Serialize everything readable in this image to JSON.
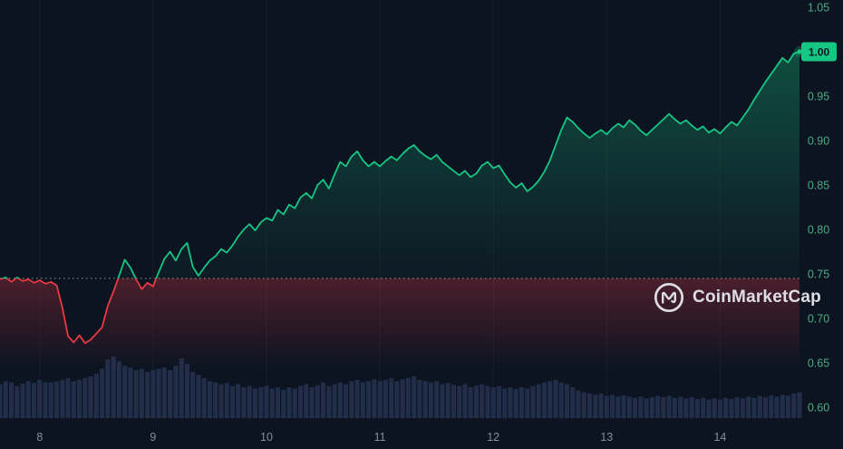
{
  "watermark": {
    "label": "CoinMarketCap"
  },
  "chart_data": {
    "type": "line",
    "title": "",
    "x_ticks": [
      "8",
      "9",
      "10",
      "11",
      "12",
      "13",
      "14"
    ],
    "y_ticks": [
      "1.05",
      "1.00",
      "0.95",
      "0.90",
      "0.85",
      "0.80",
      "0.75",
      "0.70",
      "0.65",
      "0.60"
    ],
    "x_range": [
      7.65,
      14.7
    ],
    "ylim": [
      0.6,
      1.05
    ],
    "open_price": 0.745,
    "current_price_label": "1.00",
    "prices": [
      0.744,
      0.746,
      0.741,
      0.746,
      0.742,
      0.744,
      0.74,
      0.743,
      0.739,
      0.741,
      0.737,
      0.712,
      0.68,
      0.673,
      0.681,
      0.672,
      0.676,
      0.683,
      0.69,
      0.714,
      0.73,
      0.748,
      0.766,
      0.757,
      0.744,
      0.733,
      0.74,
      0.736,
      0.752,
      0.767,
      0.775,
      0.765,
      0.778,
      0.785,
      0.758,
      0.748,
      0.757,
      0.765,
      0.77,
      0.778,
      0.774,
      0.782,
      0.792,
      0.8,
      0.806,
      0.799,
      0.808,
      0.813,
      0.81,
      0.822,
      0.817,
      0.828,
      0.824,
      0.836,
      0.841,
      0.835,
      0.85,
      0.856,
      0.846,
      0.862,
      0.876,
      0.871,
      0.882,
      0.888,
      0.878,
      0.871,
      0.876,
      0.871,
      0.877,
      0.882,
      0.878,
      0.885,
      0.891,
      0.895,
      0.888,
      0.883,
      0.879,
      0.884,
      0.876,
      0.871,
      0.866,
      0.861,
      0.866,
      0.859,
      0.863,
      0.872,
      0.876,
      0.869,
      0.872,
      0.862,
      0.853,
      0.847,
      0.852,
      0.843,
      0.848,
      0.855,
      0.865,
      0.878,
      0.895,
      0.912,
      0.926,
      0.921,
      0.914,
      0.908,
      0.903,
      0.908,
      0.912,
      0.907,
      0.914,
      0.919,
      0.915,
      0.923,
      0.918,
      0.911,
      0.906,
      0.912,
      0.918,
      0.924,
      0.93,
      0.924,
      0.919,
      0.923,
      0.917,
      0.912,
      0.916,
      0.909,
      0.913,
      0.908,
      0.915,
      0.921,
      0.917,
      0.926,
      0.935,
      0.946,
      0.956,
      0.966,
      0.975,
      0.984,
      0.993,
      0.988,
      0.998,
      1.0
    ],
    "volume": [
      55,
      60,
      58,
      52,
      56,
      60,
      57,
      62,
      58,
      58,
      60,
      62,
      65,
      60,
      62,
      65,
      68,
      72,
      80,
      95,
      100,
      92,
      85,
      82,
      78,
      80,
      75,
      78,
      80,
      82,
      78,
      85,
      97,
      88,
      75,
      70,
      65,
      60,
      58,
      55,
      57,
      52,
      55,
      50,
      52,
      48,
      50,
      52,
      48,
      50,
      46,
      50,
      48,
      52,
      55,
      50,
      53,
      58,
      52,
      55,
      58,
      55,
      60,
      62,
      58,
      60,
      63,
      60,
      62,
      65,
      60,
      63,
      65,
      68,
      62,
      60,
      58,
      60,
      55,
      57,
      54,
      52,
      55,
      50,
      53,
      55,
      52,
      50,
      52,
      48,
      50,
      47,
      50,
      48,
      52,
      55,
      58,
      60,
      62,
      58,
      55,
      50,
      45,
      42,
      40,
      38,
      40,
      36,
      38,
      35,
      37,
      35,
      33,
      35,
      32,
      34,
      36,
      34,
      36,
      33,
      35,
      32,
      34,
      31,
      33,
      30,
      32,
      30,
      33,
      31,
      34,
      32,
      35,
      33,
      36,
      34,
      37,
      35,
      38,
      36,
      40,
      42
    ],
    "colors": {
      "up": "#16c784",
      "down": "#ea3943",
      "volume_bar": "#212d49",
      "axis_label_y": "#4cab81",
      "axis_label_x": "#7f8ea3",
      "background": "#0d1421",
      "badge_bg": "#16c784",
      "badge_text": "#0d1421",
      "watermark": "#e6e9ee",
      "reference_line": "rgba(255,255,255,0.55)"
    }
  }
}
